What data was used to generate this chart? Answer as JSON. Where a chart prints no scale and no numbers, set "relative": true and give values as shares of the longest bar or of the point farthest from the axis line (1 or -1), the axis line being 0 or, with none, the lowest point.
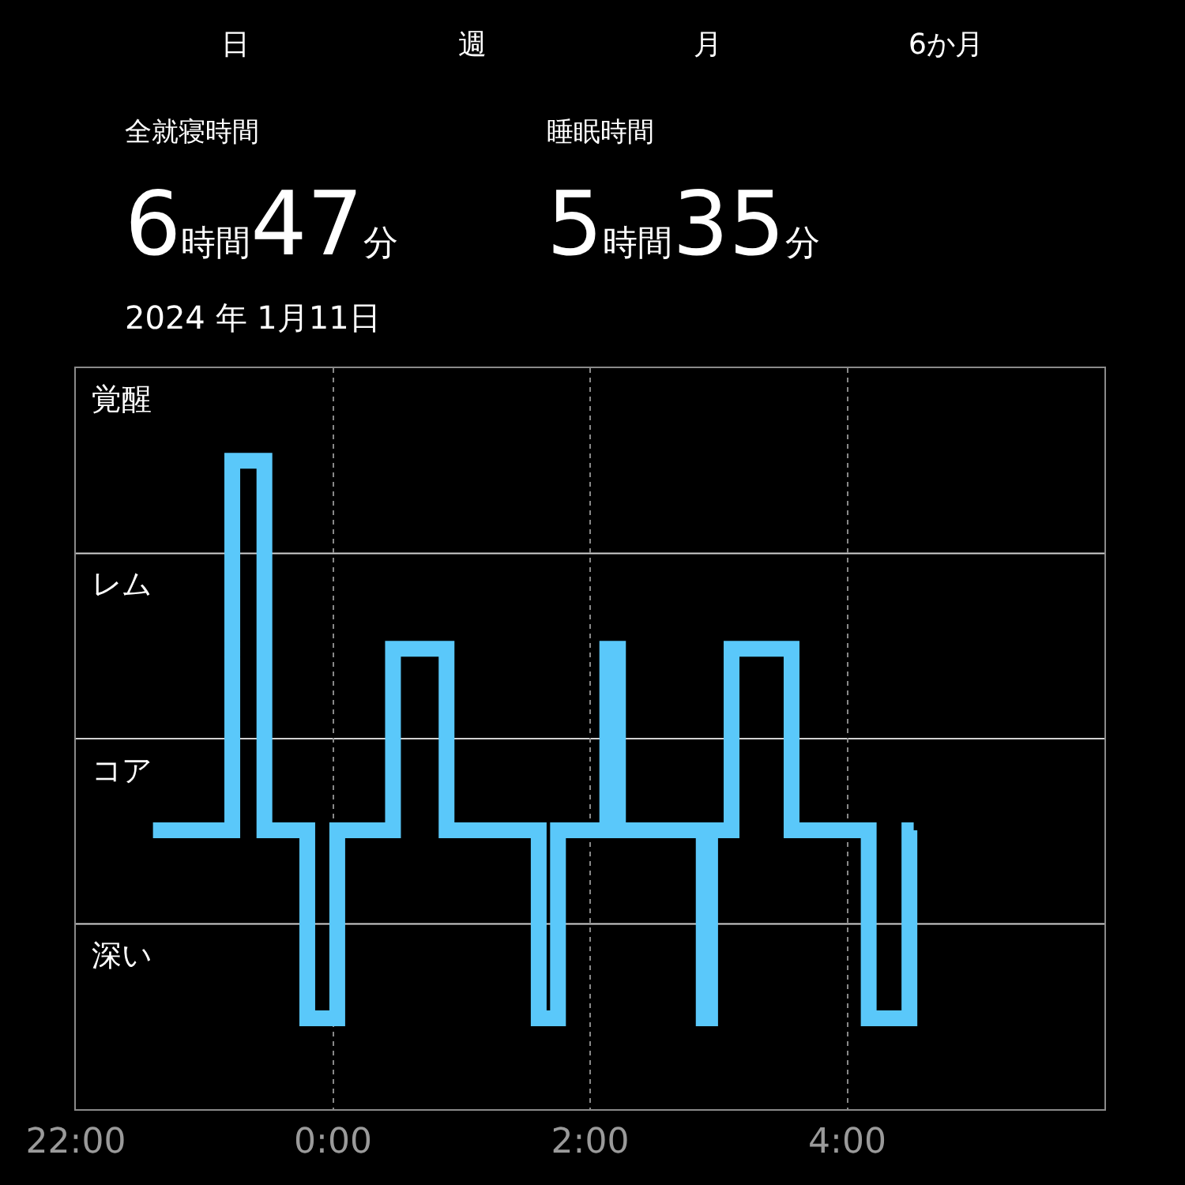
{
  "chart_data": {
    "type": "step",
    "annotations": [
      "日",
      "週",
      "月",
      "6か月",
      "全就寝時間",
      "6時間47分",
      "睡眠時間",
      "5時間35分",
      "2024 年 1月11日",
      "覚醒",
      "レム",
      "コア",
      "深い"
    ],
    "relative": true,
    "x": [
      "2024-01-10T22:36",
      "2024-01-10T23:13",
      "2024-01-10T23:28",
      "2024-01-10T23:48",
      "2024-01-11T00:02",
      "2024-01-11T00:28",
      "2024-01-11T00:53",
      "2024-01-11T01:36",
      "2024-01-11T01:45",
      "2024-01-11T02:08",
      "2024-01-11T02:13",
      "2024-01-11T02:53",
      "2024-01-11T02:56",
      "2024-01-11T03:06",
      "2024-01-11T03:34",
      "2024-01-11T04:10",
      "2024-01-11T04:29",
      "2024-01-11T04:31"
    ],
    "series": [
      {
        "color": "#5ac8fa",
        "values": [
          0.43,
          1,
          0.43,
          0.14,
          0.43,
          0.71,
          0.43,
          0.14,
          0.43,
          0.71,
          0.43,
          0.14,
          0.43,
          0.71,
          0.43,
          0.14,
          0.43,
          0.43
        ]
      }
    ],
    "xlim": [
      "2024-01-10T22:00",
      "2024-01-11T06:00"
    ],
    "xticks": [
      {
        "value": "2024-01-10T22:00",
        "label": "22:00"
      },
      {
        "value": "2024-01-11T00:00",
        "label": "0:00"
      },
      {
        "value": "2024-01-11T02:00",
        "label": "2:00"
      },
      {
        "value": "2024-01-11T04:00",
        "label": "4:00"
      }
    ],
    "grid": true,
    "legend": false,
    "line_style": "solid",
    "marker": "none"
  }
}
